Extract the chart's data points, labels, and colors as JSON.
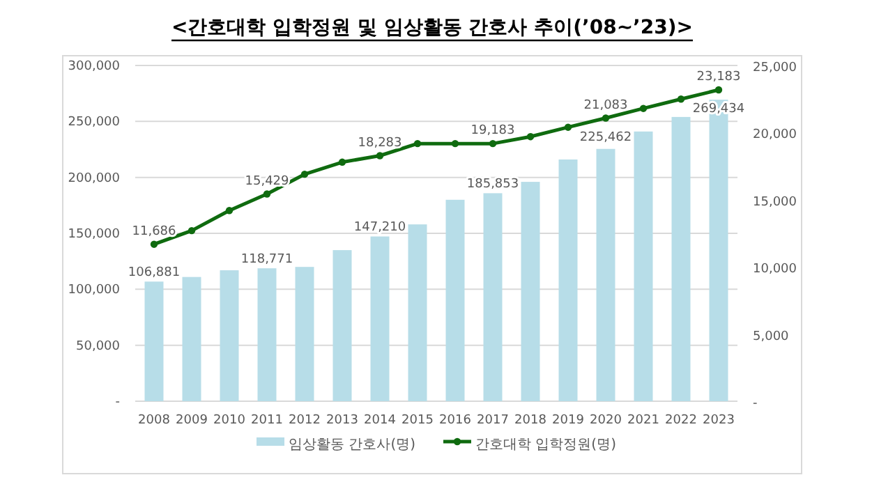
{
  "chart_data": {
    "type": "bar",
    "title": "<간호대학 입학정원 및 임상활동 간호사 추이(’08~’23)>",
    "categories": [
      "2008",
      "2009",
      "2010",
      "2011",
      "2012",
      "2013",
      "2014",
      "2015",
      "2016",
      "2017",
      "2018",
      "2019",
      "2020",
      "2021",
      "2022",
      "2023"
    ],
    "series": [
      {
        "name": "임상활동 간호사(명)",
        "color": "#b7dde8",
        "values": [
          106881,
          111000,
          117000,
          118771,
          120000,
          135000,
          147210,
          158000,
          180000,
          185853,
          196000,
          216000,
          225462,
          241000,
          254000,
          269434
        ],
        "value_labels": [
          "106,881",
          null,
          null,
          "118,771",
          null,
          null,
          "147,210",
          null,
          null,
          "185,853",
          null,
          null,
          "225,462",
          null,
          null,
          "269,434"
        ]
      },
      {
        "name": "간호대학 입학정원(명)",
        "type": "line",
        "axis": "y2",
        "color": "#0f6b0f",
        "marker": "circle",
        "values": [
          11686,
          12700,
          14200,
          15429,
          16900,
          17800,
          18283,
          19183,
          19183,
          19183,
          19700,
          20400,
          21083,
          21800,
          22500,
          23183
        ],
        "value_labels": [
          "11,686",
          null,
          null,
          "15,429",
          null,
          null,
          "18,283",
          null,
          null,
          "19,183",
          null,
          null,
          "21,083",
          null,
          null,
          "23,183"
        ]
      }
    ],
    "ylim": [
      0,
      300000
    ],
    "yticks": [
      {
        "value": 0,
        "label": "-"
      },
      {
        "value": 50000,
        "label": "50,000"
      },
      {
        "value": 100000,
        "label": "100,000"
      },
      {
        "value": 150000,
        "label": "150,000"
      },
      {
        "value": 200000,
        "label": "200,000"
      },
      {
        "value": 250000,
        "label": "250,000"
      },
      {
        "value": 300000,
        "label": "300,000"
      }
    ],
    "y2lim": [
      0,
      25000
    ],
    "y2ticks": [
      {
        "value": 0,
        "label": "-"
      },
      {
        "value": 5000,
        "label": "5,000"
      },
      {
        "value": 10000,
        "label": "10,000"
      },
      {
        "value": 15000,
        "label": "15,000"
      },
      {
        "value": 20000,
        "label": "20,000"
      },
      {
        "value": 25000,
        "label": "25,000"
      }
    ],
    "grid": "y",
    "legend": "bottom"
  }
}
